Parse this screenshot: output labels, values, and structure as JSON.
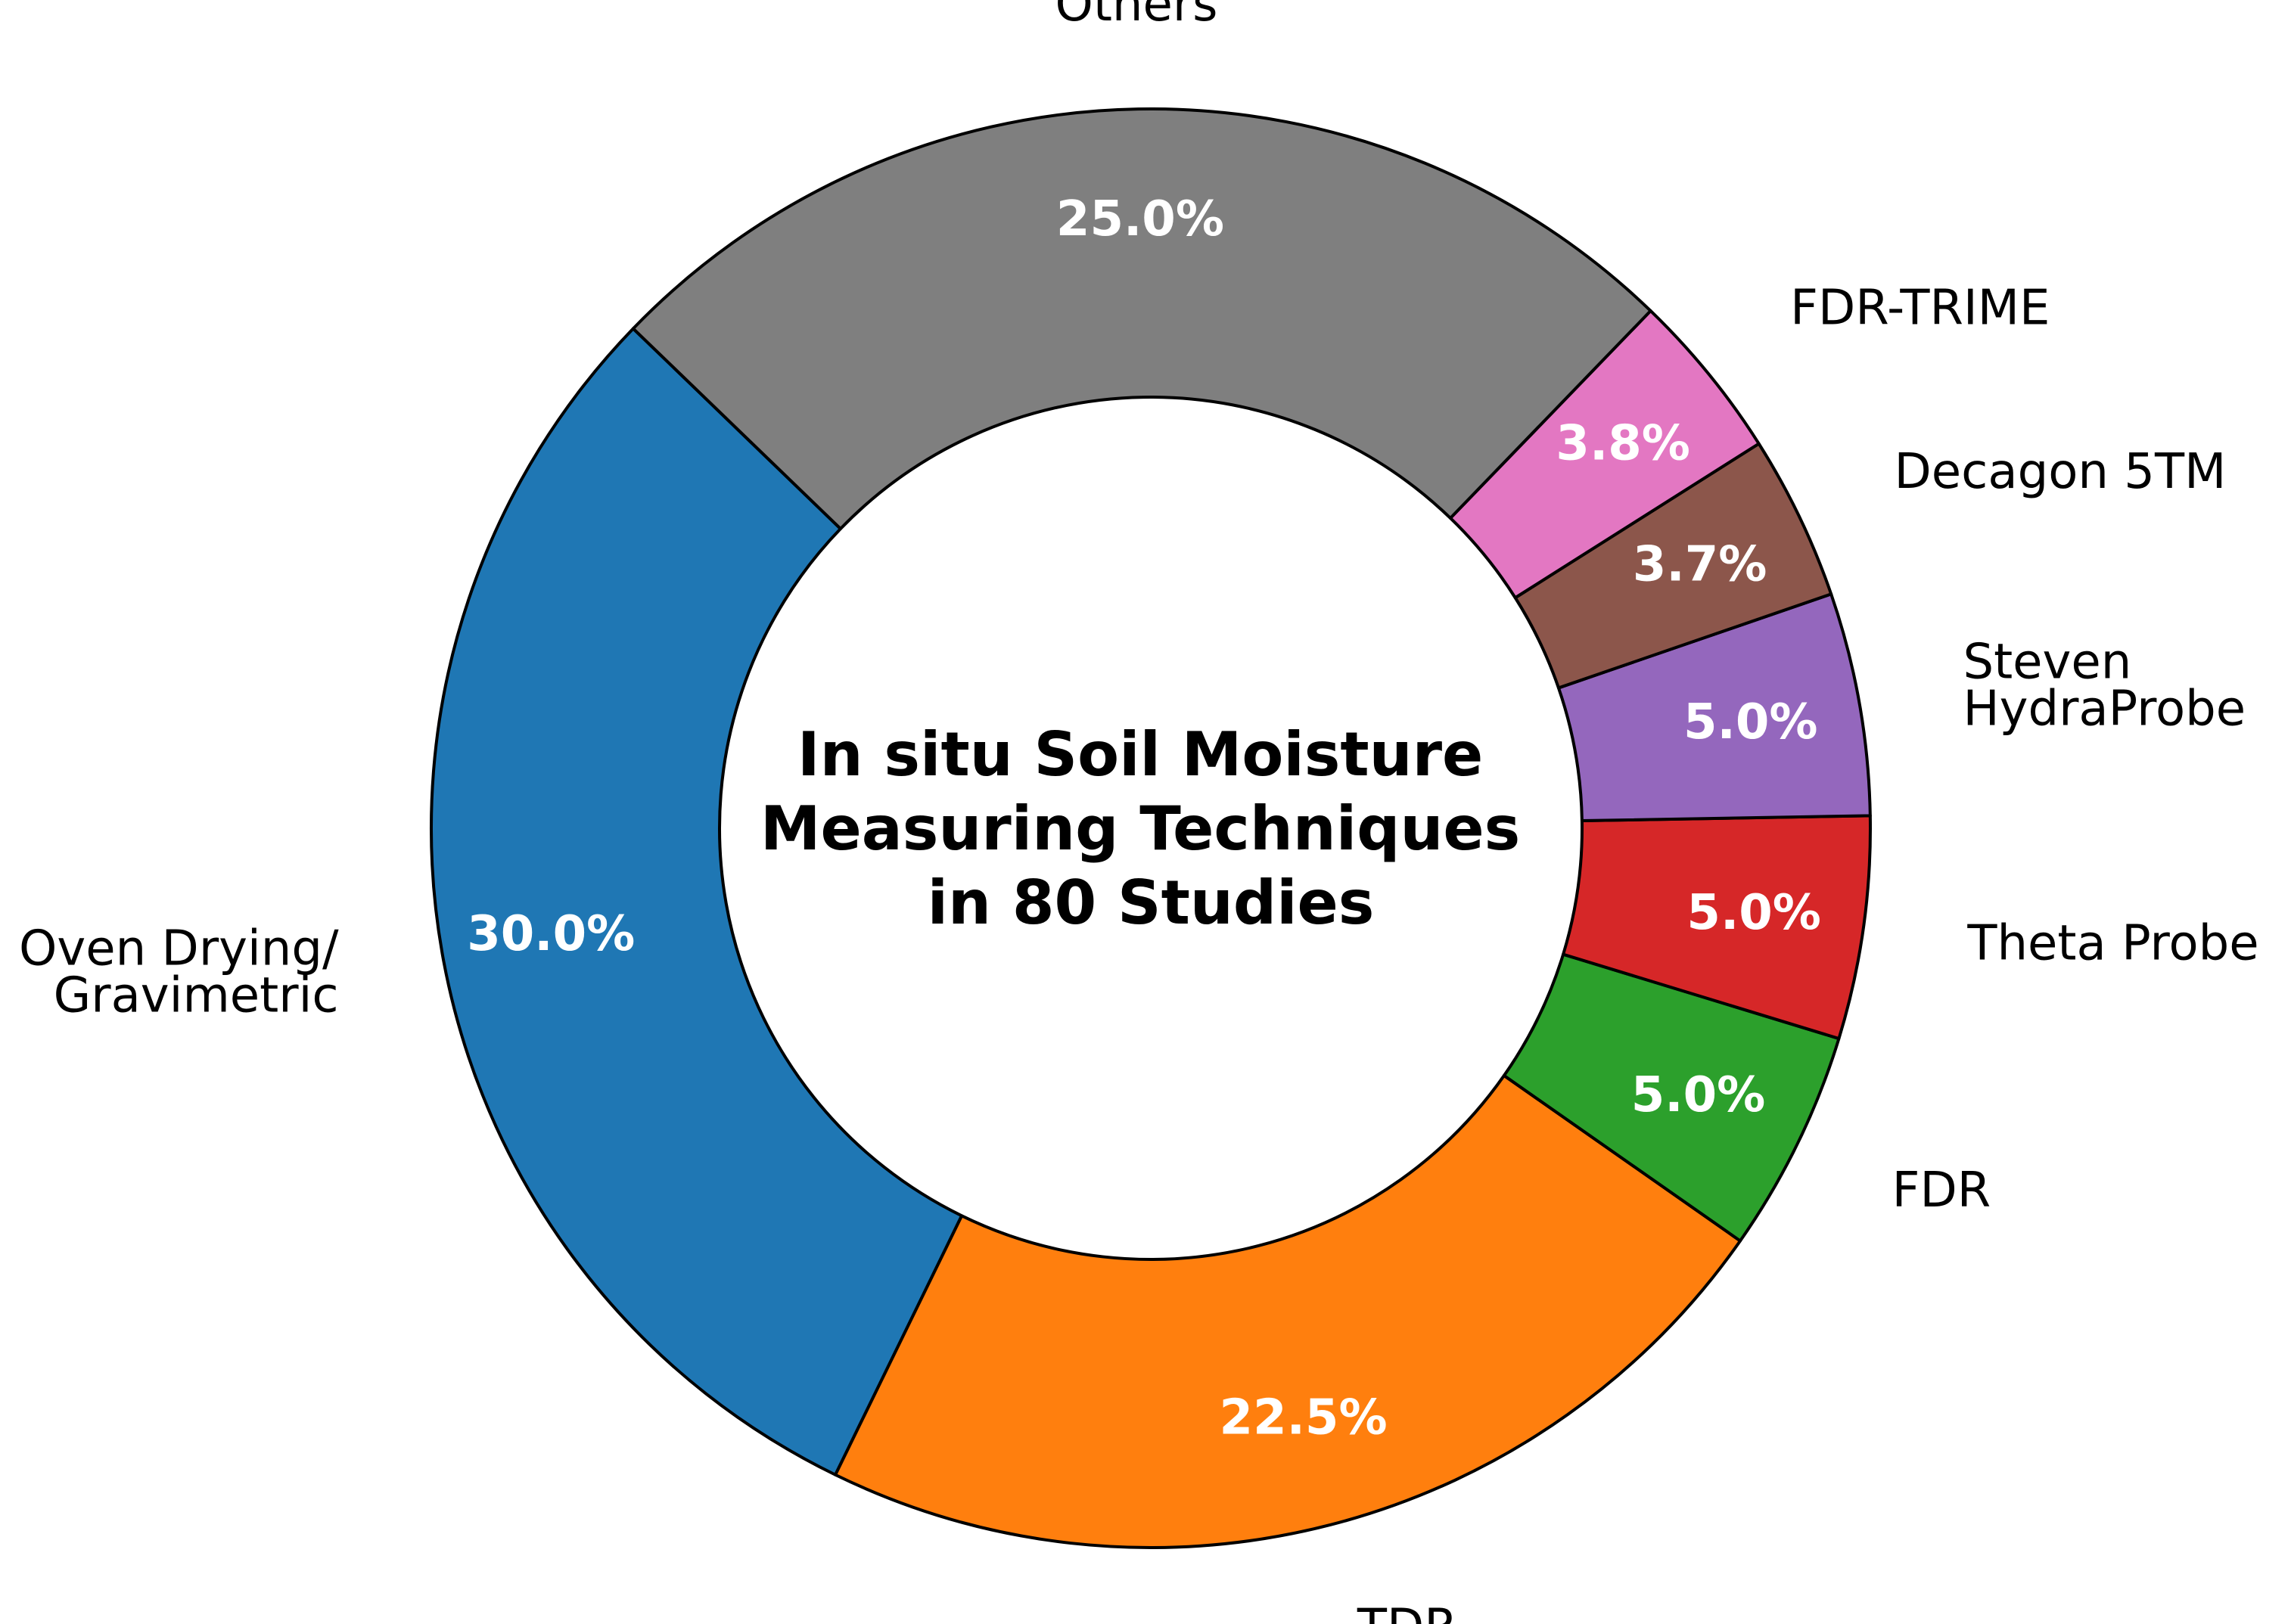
{
  "chart_data": {
    "type": "pie",
    "donut": true,
    "title": "In situ Soil Moisture Measuring Techniques in 80 Studies",
    "title_lines": [
      "In situ Soil Moisture",
      "Measuring Techniques",
      "in 80 Studies"
    ],
    "start_angle_deg": 136,
    "direction": "counterclockwise",
    "slices": [
      {
        "label": "Oven Drying/ Gravimetric",
        "label_lines": [
          "Oven Drying/",
          "Gravimetric"
        ],
        "value": 30.0,
        "pct_text": "30.0%",
        "color": "#1f77b4"
      },
      {
        "label": "TDR",
        "label_lines": [
          "TDR"
        ],
        "value": 22.5,
        "pct_text": "22.5%",
        "color": "#ff7f0e"
      },
      {
        "label": "FDR",
        "label_lines": [
          "FDR"
        ],
        "value": 5.0,
        "pct_text": "5.0%",
        "color": "#2ca02c"
      },
      {
        "label": "Theta Probe",
        "label_lines": [
          "Theta Probe"
        ],
        "value": 5.0,
        "pct_text": "5.0%",
        "color": "#d62728"
      },
      {
        "label": "Steven HydraProbe",
        "label_lines": [
          "Steven",
          "HydraProbe"
        ],
        "value": 5.0,
        "pct_text": "5.0%",
        "color": "#9467bd"
      },
      {
        "label": "Decagon 5TM",
        "label_lines": [
          "Decagon 5TM"
        ],
        "value": 3.7,
        "pct_text": "3.7%",
        "color": "#8c564b"
      },
      {
        "label": "FDR-TRIME",
        "label_lines": [
          "FDR-TRIME"
        ],
        "value": 3.8,
        "pct_text": "3.8%",
        "color": "#e377c2"
      },
      {
        "label": "Others",
        "label_lines": [
          "Others"
        ],
        "value": 25.0,
        "pct_text": "25.0%",
        "color": "#7f7f7f"
      }
    ]
  }
}
